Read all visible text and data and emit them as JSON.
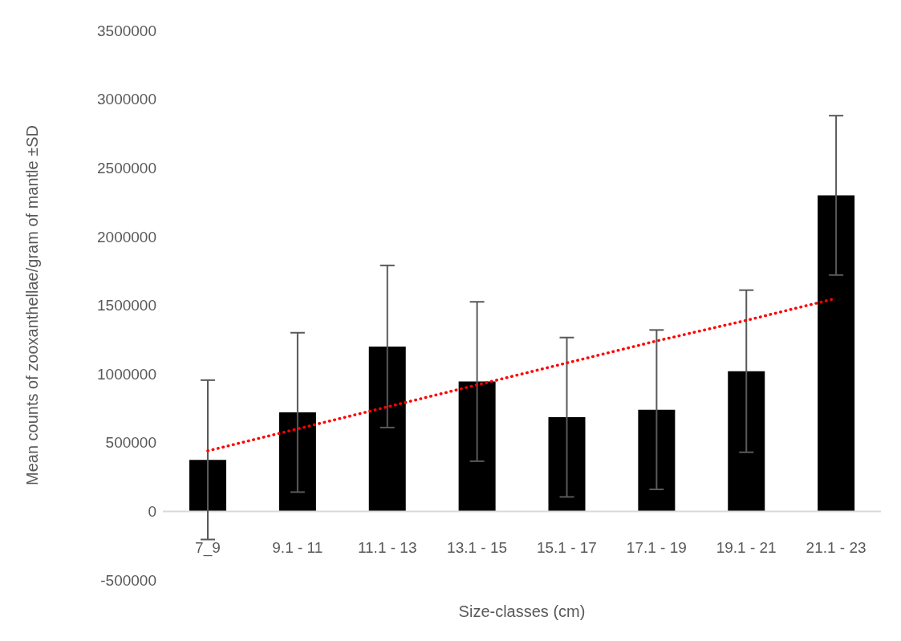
{
  "chart_data": {
    "type": "bar",
    "xlabel": "Size-classes (cm)",
    "ylabel": "Mean counts of zooxanthellae/gram of mantle ±SD",
    "categories": [
      "7_9",
      "9.1 - 11",
      "11.1 - 13",
      "13.1 - 15",
      "15.1 - 17",
      "17.1 - 19",
      "19.1 - 21",
      "21.1 - 23"
    ],
    "series": [
      {
        "color": "#000000",
        "values": [
          375000,
          720000,
          1200000,
          945000,
          685000,
          740000,
          1020000,
          2300000
        ],
        "errors": [
          580000,
          580000,
          590000,
          580000,
          580000,
          580000,
          590000,
          580000
        ]
      },
      {
        "type": "line",
        "color": "#ff0000",
        "line_style": "dotted",
        "marker": "none",
        "x": [
          "7_9",
          "9.1 - 11",
          "11.1 - 13",
          "13.1 - 15",
          "15.1 - 17",
          "17.1 - 19",
          "19.1 - 21",
          "21.1 - 23"
        ],
        "values": [
          440000,
          600000,
          760000,
          920000,
          1080000,
          1240000,
          1390000,
          1550000
        ]
      }
    ],
    "ylim": [
      -500000,
      3500000
    ],
    "yticks": [
      -500000,
      0,
      500000,
      1000000,
      1500000,
      2000000,
      2500000,
      3000000,
      3500000
    ]
  }
}
